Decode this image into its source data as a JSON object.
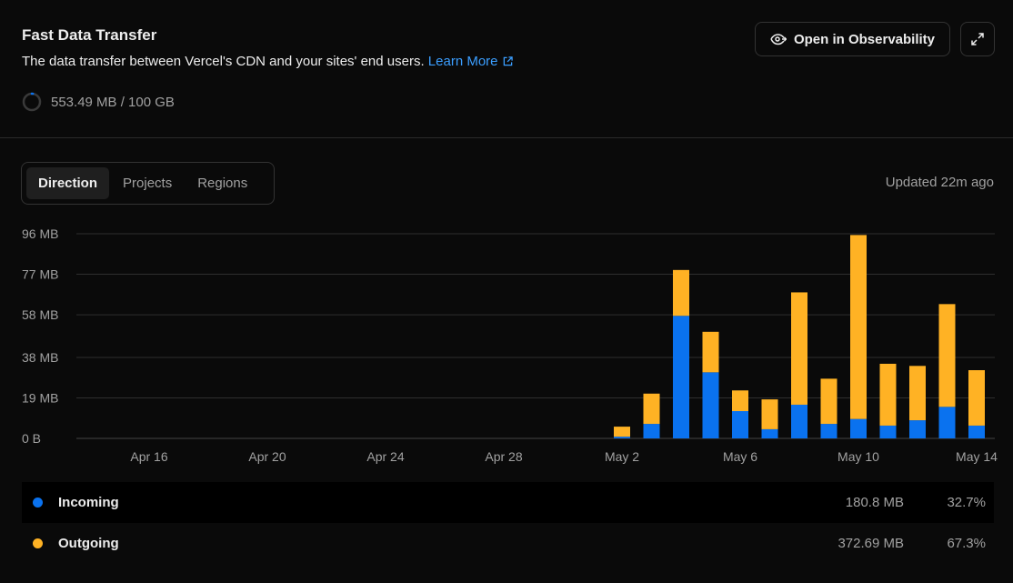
{
  "header": {
    "title": "Fast Data Transfer",
    "subtitle": "The data transfer between Vercel's CDN and your sites' end users.",
    "learn_more": "Learn More",
    "usage_text": "553.49 MB / 100 GB",
    "usage_fraction": 0.0055
  },
  "toolbar": {
    "observability_label": "Open in Observability"
  },
  "tabs": [
    {
      "label": "Direction",
      "active": true
    },
    {
      "label": "Projects",
      "active": false
    },
    {
      "label": "Regions",
      "active": false
    }
  ],
  "updated": "Updated 22m ago",
  "colors": {
    "incoming": "#0a72ef",
    "outgoing": "#ffb224",
    "accent": "#3b9eff"
  },
  "chart_data": {
    "type": "bar",
    "stacked": true,
    "y_tick_labels": [
      "96 MB",
      "77 MB",
      "58 MB",
      "38 MB",
      "19 MB",
      "0 B"
    ],
    "y_tick_values": [
      96,
      77,
      58,
      38,
      19,
      0
    ],
    "ylim": [
      0,
      96
    ],
    "x_tick_labels": [
      "Apr 16",
      "Apr 20",
      "Apr 24",
      "Apr 28",
      "May 2",
      "May 6",
      "May 10",
      "May 14"
    ],
    "categories": [
      "May 2",
      "May 3",
      "May 4",
      "May 5",
      "May 6",
      "May 7",
      "May 8",
      "May 9",
      "May 10",
      "May 11",
      "May 12",
      "May 13",
      "May 14"
    ],
    "series": [
      {
        "name": "Incoming",
        "color": "#0a72ef",
        "values": [
          0.8,
          6.8,
          57.5,
          31,
          12.8,
          4.3,
          15.8,
          6.8,
          9.1,
          6,
          8.5,
          14.8,
          6
        ]
      },
      {
        "name": "Outgoing",
        "color": "#ffb224",
        "values": [
          4.7,
          14.2,
          21.5,
          19,
          9.7,
          14,
          52.7,
          21.2,
          86.3,
          29,
          25.5,
          48.2,
          26
        ]
      }
    ],
    "grid": true,
    "legend": "bottom"
  },
  "legend": [
    {
      "name": "Incoming",
      "value": "180.8 MB",
      "percent": "32.7%"
    },
    {
      "name": "Outgoing",
      "value": "372.69 MB",
      "percent": "67.3%"
    }
  ]
}
